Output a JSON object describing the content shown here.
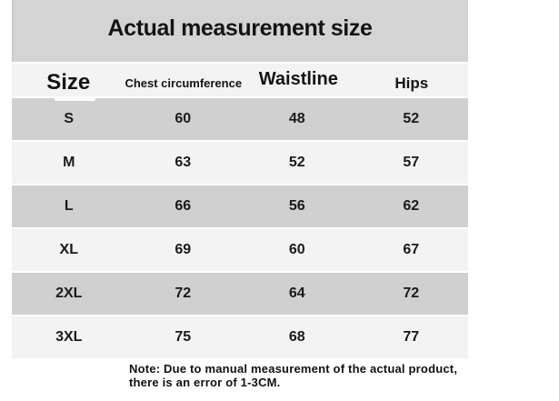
{
  "title": "Actual measurement size",
  "chart_data": {
    "type": "table",
    "title": "Actual measurement size",
    "columns": [
      "Size",
      "Chest circumference",
      "Waistline",
      "Hips"
    ],
    "rows": [
      [
        "S",
        "60",
        "48",
        "52"
      ],
      [
        "M",
        "63",
        "52",
        "57"
      ],
      [
        "L",
        "66",
        "56",
        "62"
      ],
      [
        "XL",
        "69",
        "60",
        "67"
      ],
      [
        "2XL",
        "72",
        "64",
        "72"
      ],
      [
        "3XL",
        "75",
        "68",
        "77"
      ]
    ],
    "note": "Note: Due to manual measurement of the actual product, there is an error of 1-3CM."
  },
  "note": {
    "line1": "Note: Due to manual measurement of the actual product,",
    "line2": "there is an error of 1-3CM."
  },
  "colors": {
    "banner_gray": "#d4d4d4",
    "row_gray": "#d0d0d0",
    "row_light": "#f3f3f3",
    "text": "#141414",
    "background": "#ffffff"
  }
}
